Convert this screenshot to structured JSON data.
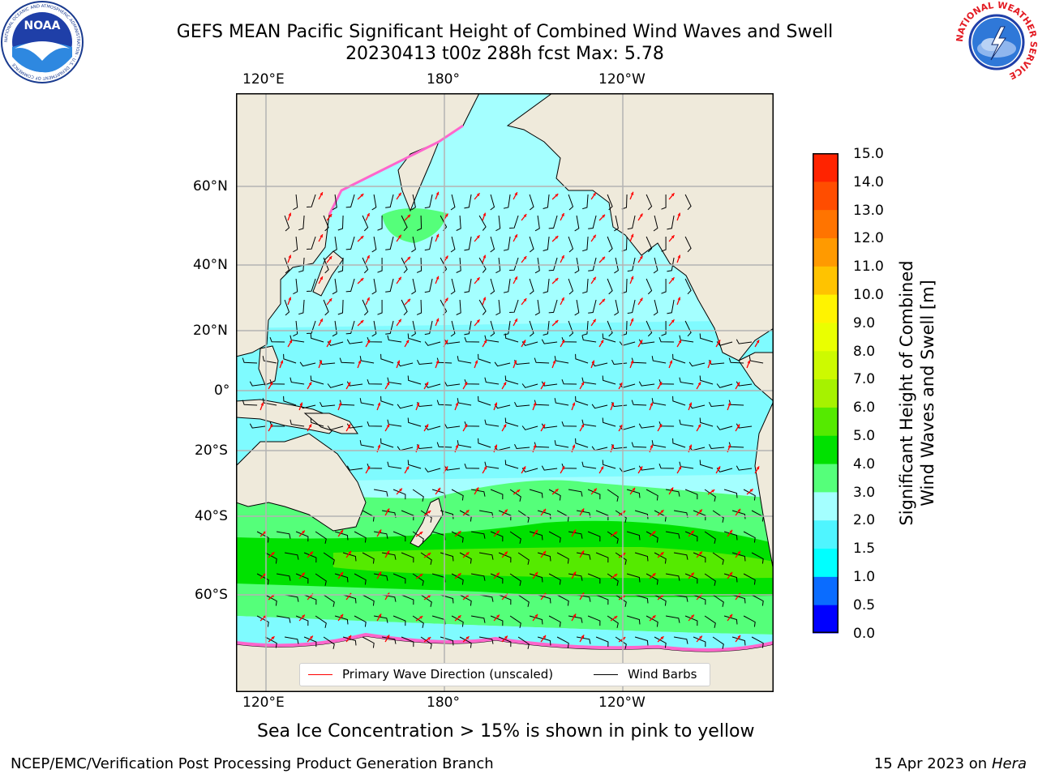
{
  "title": {
    "line1": "GEFS MEAN Pacific Significant Height of Combined Wind Waves and Swell",
    "line2": "20230413 t00z 288h fcst   Max: 5.78"
  },
  "map": {
    "lon_ticks": [
      "120°E",
      "180°",
      "120°W"
    ],
    "lat_ticks": [
      "60°N",
      "40°N",
      "20°N",
      "0°",
      "20°S",
      "40°S",
      "60°S"
    ],
    "land_color": "#efeadb",
    "legend": {
      "wave_label": "Primary Wave Direction (unscaled)",
      "wave_color": "#ff0000",
      "barb_label": "Wind Barbs",
      "barb_color": "#000000"
    }
  },
  "colorbar": {
    "label_line1": "Significant Height of Combined",
    "label_line2": "Wind Waves and Swell [m]",
    "tick_labels": [
      "15.0",
      "14.0",
      "13.0",
      "12.0",
      "11.0",
      "10.0",
      "9.0",
      "8.0",
      "7.0",
      "6.0",
      "5.0",
      "4.0",
      "3.0",
      "2.0",
      "1.5",
      "1.0",
      "0.5",
      "0.0"
    ],
    "colors_bottom_to_top": [
      "#0000ff",
      "#0a6cff",
      "#00ffff",
      "#4ff5ff",
      "#a4ffff",
      "#55ff7a",
      "#00e100",
      "#55ea00",
      "#a6f200",
      "#cdfa00",
      "#eaff00",
      "#fff300",
      "#ffc300",
      "#ff9a00",
      "#ff7400",
      "#ff4d00",
      "#ff2300",
      "#ff0000"
    ]
  },
  "notes": {
    "sea_ice": "Sea Ice Concentration > 15% is shown in pink to yellow"
  },
  "footer": {
    "left": "NCEP/EMC/Verification Post Processing Product Generation Branch",
    "date": "15 Apr 2023 on ",
    "machine": "Hera"
  },
  "logos": {
    "noaa_text": "NOAA",
    "noaa_ring_text": "NATIONAL OCEANIC AND ATMOSPHERIC ADMINISTRATION · U.S. DEPARTMENT OF COMMERCE",
    "nws_ring_text": "NATIONAL WEATHER SERVICE"
  }
}
